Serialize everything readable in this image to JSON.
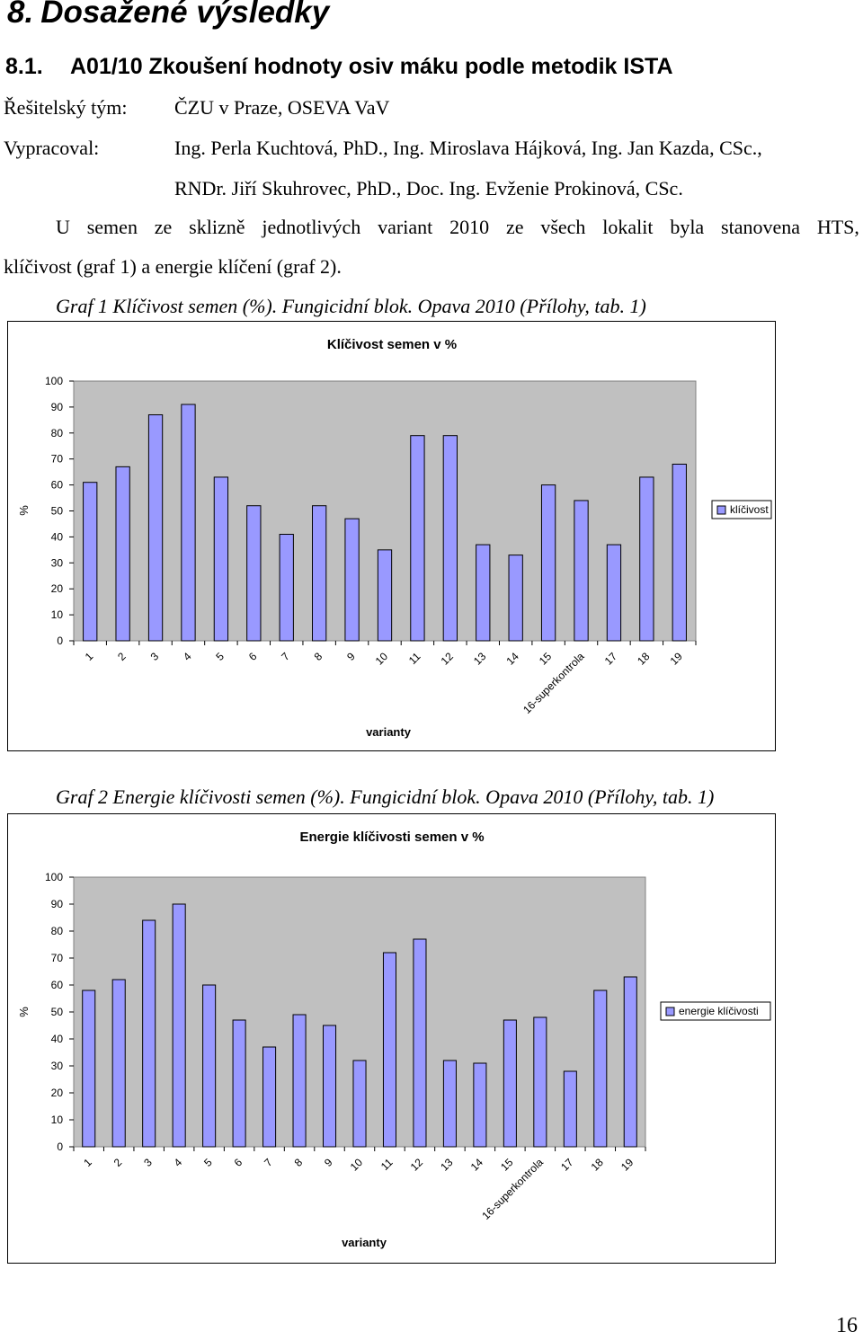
{
  "heading": {
    "number": "8.",
    "title": "Dosažené výsledky"
  },
  "subheading": {
    "number": "8.1.",
    "title": "A01/10 Zkoušení hodnoty osiv máku podle metodik ISTA"
  },
  "team": {
    "label": "Řešitelský tým:",
    "value": "ČZU v Praze, OSEVA VaV"
  },
  "author": {
    "label": "Vypracoval:",
    "line1": "Ing. Perla Kuchtová, PhD., Ing. Miroslava Hájková, Ing. Jan Kazda, CSc.,",
    "line2": "RNDr. Jiří Skuhrovec, PhD., Doc. Ing. Evženie Prokinová, CSc."
  },
  "paragraph": {
    "line1_words": [
      "U",
      "semen",
      "ze",
      "sklizně",
      "jednotlivých",
      "variant",
      "2010",
      "ze",
      "všech",
      "lokalit",
      "byla",
      "stanovena",
      "HTS,"
    ],
    "line2": "klíčivost (graf 1) a energie klíčení (graf 2)."
  },
  "captions": {
    "graf1": "Graf 1 Klíčivost semen (%). Fungicidní blok. Opava 2010 (Přílohy, tab. 1)",
    "graf2": "Graf 2 Energie klíčivosti semen (%). Fungicidní blok. Opava 2010 (Přílohy, tab. 1)"
  },
  "chart_data": [
    {
      "type": "bar",
      "title": "Klíčivost semen v %",
      "xlabel": "varianty",
      "ylabel": "%",
      "ylim": [
        0,
        100
      ],
      "yticks": [
        "0",
        "10",
        "20",
        "30",
        "40",
        "50",
        "60",
        "70",
        "80",
        "90",
        "100"
      ],
      "categories": [
        "1",
        "2",
        "3",
        "4",
        "5",
        "6",
        "7",
        "8",
        "9",
        "10",
        "11",
        "12",
        "13",
        "14",
        "15",
        "16-superkontrola",
        "17",
        "18",
        "19"
      ],
      "series": [
        {
          "name": "klíčivost",
          "values": [
            61,
            67,
            87,
            91,
            63,
            52,
            41,
            52,
            47,
            35,
            79,
            79,
            37,
            33,
            60,
            54,
            37,
            63,
            68
          ]
        }
      ],
      "grid": false,
      "legend": "right",
      "colors": {
        "bar_fill": "#9999ff",
        "plot_bg": "#c0c0c0"
      }
    },
    {
      "type": "bar",
      "title": "Energie klíčivosti semen v %",
      "xlabel": "varianty",
      "ylabel": "%",
      "ylim": [
        0,
        100
      ],
      "yticks": [
        "0",
        "10",
        "20",
        "30",
        "40",
        "50",
        "60",
        "70",
        "80",
        "90",
        "100"
      ],
      "categories": [
        "1",
        "2",
        "3",
        "4",
        "5",
        "6",
        "7",
        "8",
        "9",
        "10",
        "11",
        "12",
        "13",
        "14",
        "15",
        "16-superkontrola",
        "17",
        "18",
        "19"
      ],
      "series": [
        {
          "name": "energie klíčivosti",
          "values": [
            58,
            62,
            84,
            90,
            60,
            47,
            37,
            49,
            45,
            32,
            72,
            77,
            32,
            31,
            47,
            48,
            28,
            58,
            63
          ]
        }
      ],
      "grid": false,
      "legend": "right",
      "colors": {
        "bar_fill": "#9999ff",
        "plot_bg": "#c0c0c0"
      }
    }
  ],
  "page_number": "16"
}
